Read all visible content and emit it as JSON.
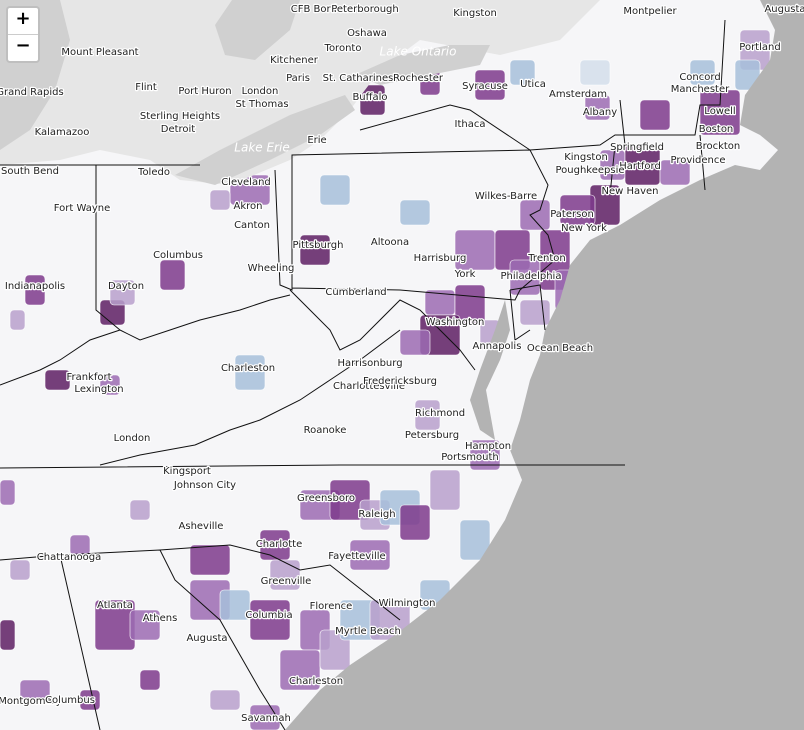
{
  "zoom_controls": {
    "zoom_in": "+",
    "zoom_out": "−"
  },
  "labels": [
    "CFB Borden",
    "Peterborough",
    "Kingston",
    "Montpelier",
    "Augusta",
    "Mount Pleasant",
    "Oshawa",
    "Toronto",
    "Lake Ontario",
    "Kitchener",
    "Paris",
    "London",
    "St. Catharines",
    "Grand Rapids",
    "St Thomas",
    "Flint",
    "Port Huron",
    "Rochester",
    "Syracuse",
    "Utica",
    "Amsterdam",
    "Concord",
    "Manchester",
    "Portland",
    "Lowell",
    "Boston",
    "Kalamazoo",
    "Sterling Heights",
    "Detroit",
    "Lake Erie",
    "Buffalo",
    "Ithaca",
    "Albany",
    "Springfield",
    "Brockton",
    "Providence",
    "Hartford",
    "New Haven",
    "Kingston",
    "Poughkeepsie",
    "South Bend",
    "Toledo",
    "Cleveland",
    "Erie",
    "Akron",
    "Canton",
    "Wilkes-Barre",
    "Paterson",
    "New York",
    "Fort Wayne",
    "Pittsburgh",
    "Altoona",
    "Harrisburg",
    "York",
    "Trenton",
    "Philadelphia",
    "Wheeling",
    "Columbus",
    "Indianapolis",
    "Dayton",
    "Cumberland",
    "Washington",
    "Annapolis",
    "Ocean Beach",
    "Frankfort",
    "Lexington",
    "Charleston",
    "Harrisonburg",
    "Charlottesville",
    "Fredericksburg",
    "Richmond",
    "Petersburg",
    "Roanoke",
    "Hampton",
    "Portsmouth",
    "London",
    "Kingsport",
    "Johnson City",
    "Greensboro",
    "Raleigh",
    "Asheville",
    "Charlotte",
    "Chattanooga",
    "Greenville",
    "Fayetteville",
    "Wilmington",
    "Atlanta",
    "Athens",
    "Columbia",
    "Florence",
    "Myrtle Beach",
    "Augusta",
    "Montgomery",
    "Columbus",
    "Charleston",
    "Savannah"
  ]
}
